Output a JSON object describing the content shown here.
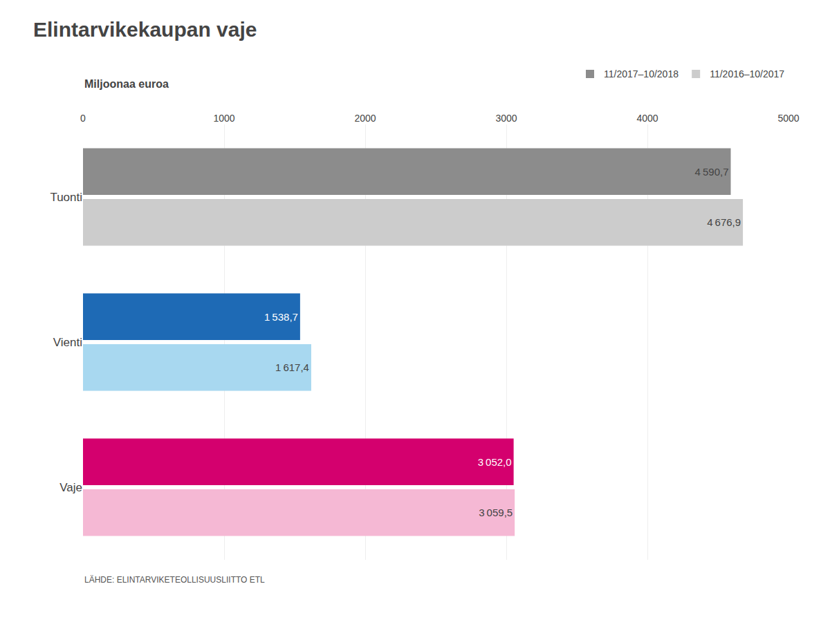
{
  "chart_data": {
    "type": "bar",
    "orientation": "horizontal",
    "title": "Elintarvikekaupan vaje",
    "subtitle": "Miljoonaa euroa",
    "annotations": [
      "LÄHDE: ELINTARVIKETEOLLISUUSLIITTO ETL"
    ],
    "categories": [
      "Tuonti",
      "Vienti",
      "Vaje"
    ],
    "series": [
      {
        "name": "11/2017–10/2018",
        "colors": [
          "#8c8c8c",
          "#1e6ab5",
          "#d4006e"
        ],
        "values": [
          4590.7,
          1538.7,
          3052.0
        ],
        "value_labels": [
          "4 590,7",
          "1 538,7",
          "3 052,0"
        ]
      },
      {
        "name": "11/2016–10/2017",
        "colors": [
          "#cccccc",
          "#a8d8f0",
          "#f5b8d4"
        ],
        "values": [
          4676.9,
          1617.4,
          3059.5
        ],
        "value_labels": [
          "4 676,9",
          "1 617,4",
          "3 059,5"
        ]
      }
    ],
    "xlim": [
      0,
      5000
    ],
    "xticks": [
      0,
      1000,
      2000,
      3000,
      4000,
      5000
    ],
    "grid": true,
    "data_labels": true,
    "legend": "upper right"
  }
}
